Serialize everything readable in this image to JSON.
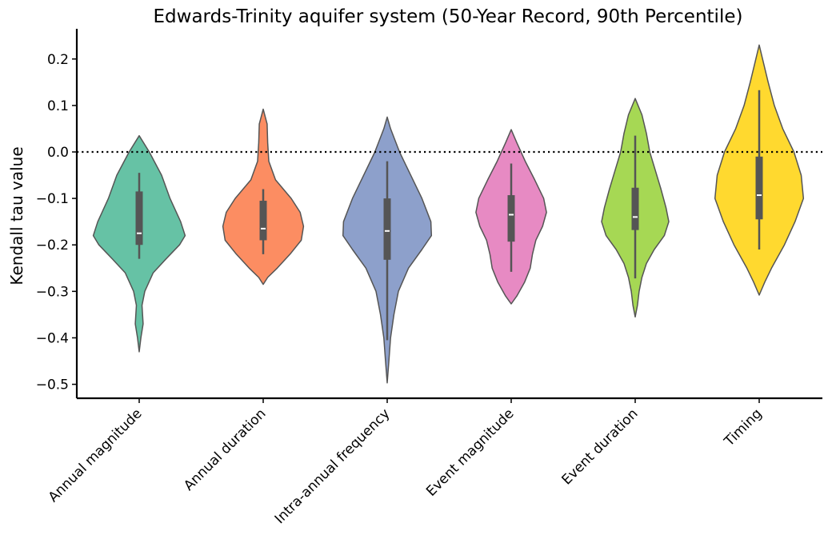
{
  "chart_data": {
    "type": "violin",
    "title": "Edwards-Trinity aquifer system (50-Year Record, 90th Percentile)",
    "xlabel": "",
    "ylabel": "Kendall tau value",
    "ylim": [
      -0.53,
      0.265
    ],
    "yticks": [
      {
        "value": 0.2,
        "label": "0.2"
      },
      {
        "value": 0.1,
        "label": "0.1"
      },
      {
        "value": 0.0,
        "label": "0.0"
      },
      {
        "value": -0.1,
        "label": "−0.1"
      },
      {
        "value": -0.2,
        "label": "−0.2"
      },
      {
        "value": -0.3,
        "label": "−0.3"
      },
      {
        "value": -0.4,
        "label": "−0.4"
      },
      {
        "value": -0.5,
        "label": "−0.5"
      }
    ],
    "reference_line": {
      "value": 0.0,
      "style": "dotted"
    },
    "grid": false,
    "categories": [
      "Annual magnitude",
      "Annual duration",
      "Intra-annual frequency",
      "Event magnitude",
      "Event duration",
      "Timing"
    ],
    "violins": [
      {
        "category": "Annual magnitude",
        "color": "#66c2a5",
        "extent": [
          -0.43,
          0.035
        ],
        "whisker": [
          -0.23,
          -0.045
        ],
        "q1": -0.2,
        "q3": -0.085,
        "median": -0.175,
        "profile": [
          [
            0.035,
            0.0
          ],
          [
            0.0,
            0.18
          ],
          [
            -0.05,
            0.4
          ],
          [
            -0.1,
            0.55
          ],
          [
            -0.15,
            0.74
          ],
          [
            -0.18,
            0.82
          ],
          [
            -0.2,
            0.72
          ],
          [
            -0.23,
            0.48
          ],
          [
            -0.26,
            0.25
          ],
          [
            -0.3,
            0.1
          ],
          [
            -0.33,
            0.05
          ],
          [
            -0.37,
            0.07
          ],
          [
            -0.4,
            0.03
          ],
          [
            -0.43,
            0.0
          ]
        ]
      },
      {
        "category": "Annual duration",
        "color": "#fc8d62",
        "extent": [
          -0.285,
          0.092
        ],
        "whisker": [
          -0.22,
          -0.08
        ],
        "q1": -0.19,
        "q3": -0.105,
        "median": -0.165,
        "profile": [
          [
            0.092,
            0.0
          ],
          [
            0.06,
            0.07
          ],
          [
            0.02,
            0.08
          ],
          [
            -0.02,
            0.1
          ],
          [
            -0.06,
            0.22
          ],
          [
            -0.1,
            0.5
          ],
          [
            -0.13,
            0.66
          ],
          [
            -0.16,
            0.72
          ],
          [
            -0.19,
            0.68
          ],
          [
            -0.22,
            0.48
          ],
          [
            -0.25,
            0.25
          ],
          [
            -0.27,
            0.08
          ],
          [
            -0.285,
            0.0
          ]
        ]
      },
      {
        "category": "Intra-annual frequency",
        "color": "#8da0cb",
        "extent": [
          -0.497,
          0.075
        ],
        "whisker": [
          -0.405,
          -0.02
        ],
        "q1": -0.232,
        "q3": -0.1,
        "median": -0.17,
        "profile": [
          [
            0.075,
            0.0
          ],
          [
            0.05,
            0.06
          ],
          [
            0.0,
            0.22
          ],
          [
            -0.05,
            0.42
          ],
          [
            -0.1,
            0.62
          ],
          [
            -0.15,
            0.78
          ],
          [
            -0.18,
            0.79
          ],
          [
            -0.21,
            0.62
          ],
          [
            -0.25,
            0.38
          ],
          [
            -0.3,
            0.2
          ],
          [
            -0.35,
            0.12
          ],
          [
            -0.4,
            0.06
          ],
          [
            -0.45,
            0.03
          ],
          [
            -0.497,
            0.0
          ]
        ]
      },
      {
        "category": "Event magnitude",
        "color": "#e78ac3",
        "extent": [
          -0.327,
          0.048
        ],
        "whisker": [
          -0.258,
          -0.025
        ],
        "q1": -0.193,
        "q3": -0.093,
        "median": -0.135,
        "profile": [
          [
            0.048,
            0.0
          ],
          [
            0.02,
            0.1
          ],
          [
            -0.02,
            0.25
          ],
          [
            -0.06,
            0.42
          ],
          [
            -0.1,
            0.58
          ],
          [
            -0.13,
            0.63
          ],
          [
            -0.16,
            0.56
          ],
          [
            -0.19,
            0.44
          ],
          [
            -0.22,
            0.38
          ],
          [
            -0.25,
            0.34
          ],
          [
            -0.28,
            0.24
          ],
          [
            -0.31,
            0.1
          ],
          [
            -0.327,
            0.0
          ]
        ]
      },
      {
        "category": "Event duration",
        "color": "#a6d854",
        "extent": [
          -0.355,
          0.115
        ],
        "whisker": [
          -0.272,
          0.035
        ],
        "q1": -0.168,
        "q3": -0.077,
        "median": -0.14,
        "profile": [
          [
            0.115,
            0.0
          ],
          [
            0.08,
            0.12
          ],
          [
            0.04,
            0.2
          ],
          [
            0.0,
            0.26
          ],
          [
            -0.04,
            0.36
          ],
          [
            -0.08,
            0.46
          ],
          [
            -0.12,
            0.55
          ],
          [
            -0.15,
            0.6
          ],
          [
            -0.18,
            0.52
          ],
          [
            -0.21,
            0.34
          ],
          [
            -0.24,
            0.2
          ],
          [
            -0.27,
            0.12
          ],
          [
            -0.3,
            0.07
          ],
          [
            -0.33,
            0.04
          ],
          [
            -0.355,
            0.0
          ]
        ]
      },
      {
        "category": "Timing",
        "color": "#ffd92f",
        "extent": [
          -0.308,
          0.23
        ],
        "whisker": [
          -0.21,
          0.133
        ],
        "q1": -0.145,
        "q3": -0.01,
        "median": -0.093,
        "profile": [
          [
            0.23,
            0.0
          ],
          [
            0.2,
            0.06
          ],
          [
            0.15,
            0.16
          ],
          [
            0.1,
            0.27
          ],
          [
            0.05,
            0.42
          ],
          [
            0.0,
            0.62
          ],
          [
            -0.05,
            0.75
          ],
          [
            -0.1,
            0.79
          ],
          [
            -0.15,
            0.64
          ],
          [
            -0.2,
            0.45
          ],
          [
            -0.25,
            0.22
          ],
          [
            -0.28,
            0.1
          ],
          [
            -0.308,
            0.0
          ]
        ]
      }
    ]
  }
}
